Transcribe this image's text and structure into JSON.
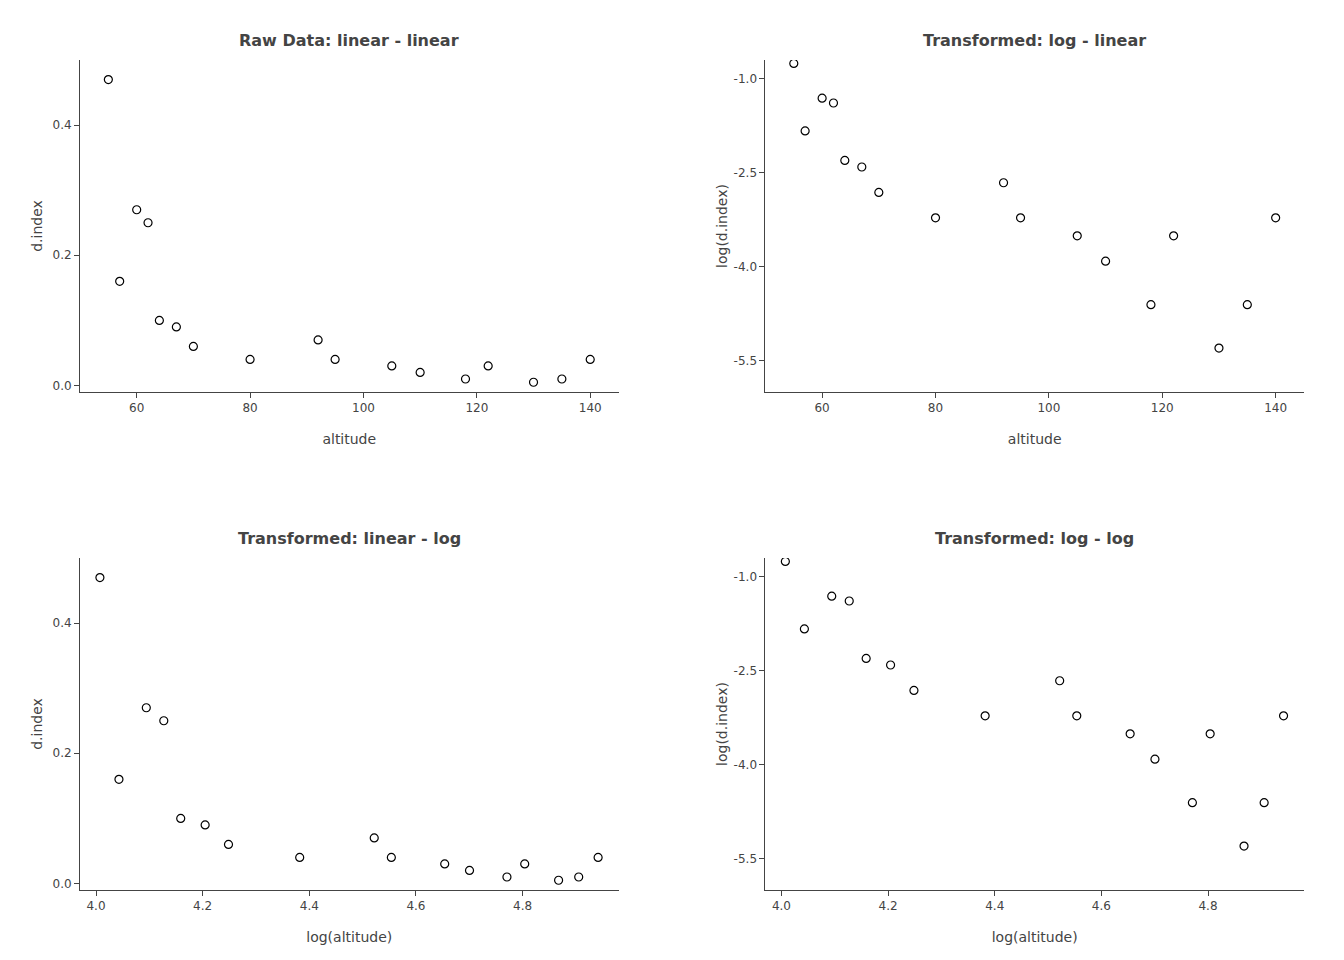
{
  "chart_data": [
    {
      "type": "scatter",
      "title": "Raw Data: linear - linear",
      "xlabel": "altitude",
      "ylabel": "d.index",
      "x": [
        55,
        57,
        60,
        62,
        64,
        67,
        70,
        80,
        92,
        95,
        105,
        110,
        118,
        122,
        130,
        135,
        140
      ],
      "values": [
        0.47,
        0.16,
        0.27,
        0.25,
        0.1,
        0.09,
        0.06,
        0.04,
        0.07,
        0.04,
        0.03,
        0.02,
        0.01,
        0.03,
        0.005,
        0.01,
        0.04
      ],
      "xlim": [
        50,
        145
      ],
      "ylim": [
        -0.01,
        0.5
      ],
      "xticks": [
        60,
        80,
        100,
        120,
        140
      ],
      "yticks": [
        {
          "value": 0,
          "label": "0.0"
        },
        0.2,
        0.4
      ],
      "color": "black",
      "marker": "hollow",
      "grid": false
    },
    {
      "type": "scatter",
      "title": "Transformed: log - linear",
      "xlabel": "altitude",
      "ylabel": "log(d.index)",
      "x": [
        55,
        57,
        60,
        62,
        64,
        67,
        70,
        80,
        92,
        95,
        105,
        110,
        118,
        122,
        130,
        135,
        140
      ],
      "values": [
        -0.7550225842780336,
        -1.8325814637483102,
        -1.309333319983763,
        -1.3862943611198906,
        -2.3025850929940455,
        -2.4079456086518722,
        -2.8134107167600364,
        -3.2188758248682006,
        -2.659260036932779,
        -3.2188758248682006,
        -3.506557897319982,
        -3.912023005428146,
        -4.605170185988091,
        -3.506557897319982,
        -5.298317366548036,
        -4.605170185988091,
        -3.2188758248682006
      ],
      "xlim": [
        50,
        145
      ],
      "ylim": [
        -6.0,
        -0.7
      ],
      "xticks": [
        60,
        80,
        100,
        120,
        140
      ],
      "yticks": [
        -5.5,
        {
          "value": -4,
          "label": "-4.0"
        },
        -2.5,
        {
          "value": -1,
          "label": "-1.0"
        }
      ],
      "color": "black",
      "marker": "hollow",
      "grid": false
    },
    {
      "type": "scatter",
      "title": "Transformed: linear - log",
      "xlabel": "log(altitude)",
      "ylabel": "d.index",
      "x": [
        4.007333185232471,
        4.04305126783455,
        4.0943445622221,
        4.127134385045092,
        4.1588830833596715,
        4.204692619390966,
        4.248495242049359,
        4.382026634673881,
        4.5217885770490405,
        4.553876891600541,
        4.653960350157523,
        4.700480365792417,
        4.770684624465665,
        4.804021044733257,
        4.867534450455582,
        4.90527477843843,
        4.941642422609304
      ],
      "values": [
        0.47,
        0.16,
        0.27,
        0.25,
        0.1,
        0.09,
        0.06,
        0.04,
        0.07,
        0.04,
        0.03,
        0.02,
        0.01,
        0.03,
        0.005,
        0.01,
        0.04
      ],
      "xlim": [
        3.97,
        4.98
      ],
      "ylim": [
        -0.01,
        0.5
      ],
      "xticks": [
        {
          "value": 4,
          "label": "4.0"
        },
        4.2,
        4.4,
        4.6,
        4.8
      ],
      "yticks": [
        {
          "value": 0,
          "label": "0.0"
        },
        0.2,
        0.4
      ],
      "color": "black",
      "marker": "hollow",
      "grid": false
    },
    {
      "type": "scatter",
      "title": "Transformed: log - log",
      "xlabel": "log(altitude)",
      "ylabel": "log(d.index)",
      "x": [
        4.007333185232471,
        4.04305126783455,
        4.0943445622221,
        4.127134385045092,
        4.1588830833596715,
        4.204692619390966,
        4.248495242049359,
        4.382026634673881,
        4.5217885770490405,
        4.553876891600541,
        4.653960350157523,
        4.700480365792417,
        4.770684624465665,
        4.804021044733257,
        4.867534450455582,
        4.90527477843843,
        4.941642422609304
      ],
      "values": [
        -0.7550225842780336,
        -1.8325814637483102,
        -1.309333319983763,
        -1.3862943611198906,
        -2.3025850929940455,
        -2.4079456086518722,
        -2.8134107167600364,
        -3.2188758248682006,
        -2.659260036932779,
        -3.2188758248682006,
        -3.506557897319982,
        -3.912023005428146,
        -4.605170185988091,
        -3.506557897319982,
        -5.298317366548036,
        -4.605170185988091,
        -3.2188758248682006
      ],
      "xlim": [
        3.97,
        4.98
      ],
      "ylim": [
        -6.0,
        -0.7
      ],
      "xticks": [
        {
          "value": 4,
          "label": "4.0"
        },
        4.2,
        4.4,
        4.6,
        4.8
      ],
      "yticks": [
        -5.5,
        {
          "value": -4,
          "label": "-4.0"
        },
        -2.5,
        {
          "value": -1,
          "label": "-1.0"
        }
      ],
      "color": "black",
      "marker": "hollow",
      "grid": false
    }
  ]
}
